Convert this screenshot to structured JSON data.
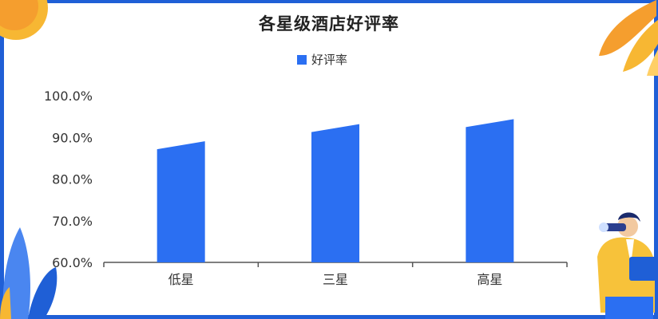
{
  "chart_data": {
    "type": "bar",
    "title": "各星级酒店好评率",
    "categories": [
      "低星",
      "三星",
      "高星"
    ],
    "series": [
      {
        "name": "好评率",
        "values": [
          88.5,
          92.6,
          93.8
        ]
      }
    ],
    "ylim": [
      60,
      100
    ],
    "yticks": [
      "60.0%",
      "70.0%",
      "80.0%",
      "90.0%",
      "100.0%"
    ],
    "grid": false,
    "legend": "top-center",
    "colors": {
      "bar": "#2b6ff2",
      "frame": "#1f5fd6"
    }
  }
}
